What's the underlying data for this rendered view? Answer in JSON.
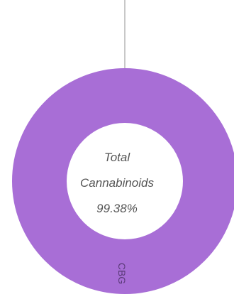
{
  "chart_data": {
    "type": "pie",
    "subtype": "donut",
    "slices": [
      {
        "label": "CBG",
        "value": 99.38,
        "color": "#a86ed6"
      }
    ],
    "center_text": {
      "line1": "Total",
      "line2": "Cannabinoids",
      "value": "99.38%"
    },
    "colors": {
      "slice": "#a86ed6",
      "leader_line": "#c8c8c8",
      "slice_label": "#5a3a78",
      "center_text": "#555555"
    }
  }
}
